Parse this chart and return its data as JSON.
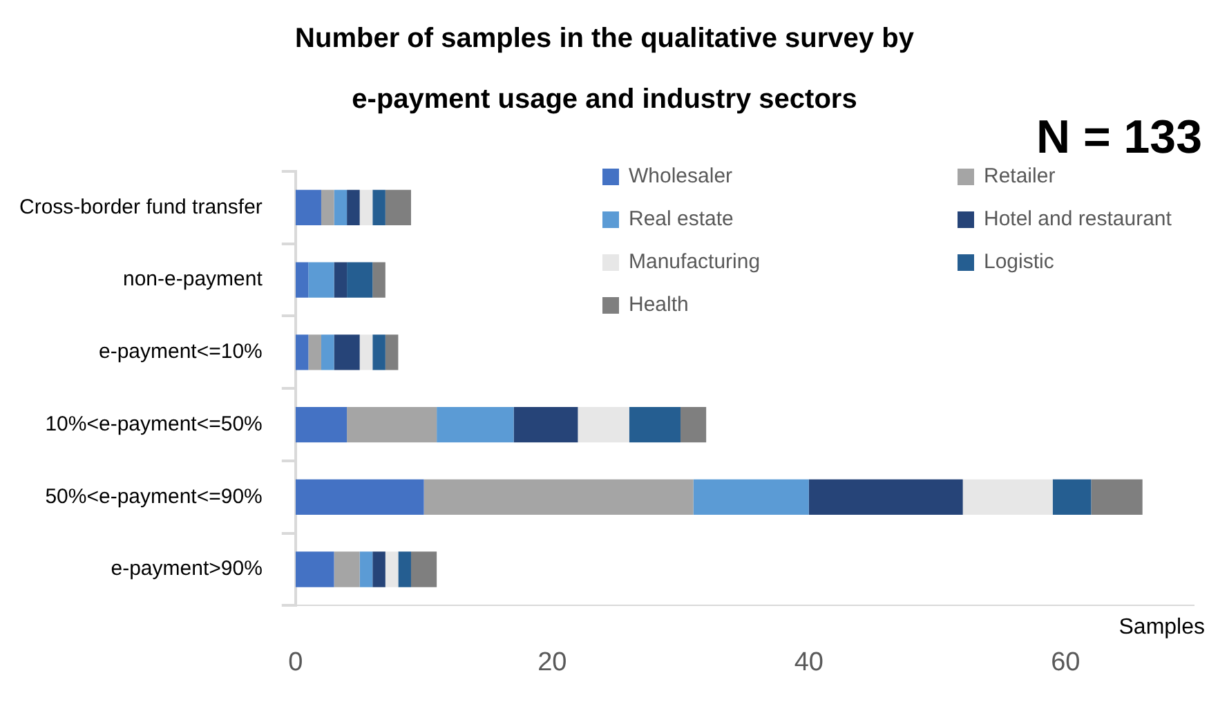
{
  "chart_data": {
    "type": "bar",
    "orientation": "horizontal",
    "stacked": true,
    "title": "Number of samples in the qualitative survey by e-payment usage and industry sectors",
    "xlabel": "Samples",
    "annotations": [
      "N = 133"
    ],
    "categories": [
      "Cross-border fund transfer",
      "non-e-payment",
      "e-payment<=10%",
      "10%<e-payment<=50%",
      "50%<e-payment<=90%",
      "e-payment>90%"
    ],
    "series": [
      {
        "name": "Wholesaler",
        "color": "#4472c4",
        "values": [
          2,
          1,
          1,
          4,
          10,
          3
        ]
      },
      {
        "name": "Retailer",
        "color": "#a5a5a5",
        "values": [
          1,
          0,
          1,
          7,
          21,
          2
        ]
      },
      {
        "name": "Real estate",
        "color": "#5b9bd5",
        "values": [
          1,
          2,
          1,
          6,
          9,
          1
        ]
      },
      {
        "name": "Hotel and restaurant",
        "color": "#264478",
        "values": [
          1,
          1,
          2,
          5,
          12,
          1
        ]
      },
      {
        "name": "Manufacturing",
        "color": "#e7e7e7",
        "values": [
          1,
          0,
          1,
          4,
          7,
          1
        ]
      },
      {
        "name": "Logistic",
        "color": "#255e91",
        "values": [
          1,
          2,
          1,
          4,
          3,
          1
        ]
      },
      {
        "name": "Health",
        "color": "#7f7f7f",
        "values": [
          2,
          1,
          1,
          2,
          4,
          2
        ]
      }
    ],
    "xlim": [
      0,
      70
    ],
    "xticks": [
      0,
      20,
      40,
      60
    ],
    "grid": false,
    "legend": "top right"
  }
}
